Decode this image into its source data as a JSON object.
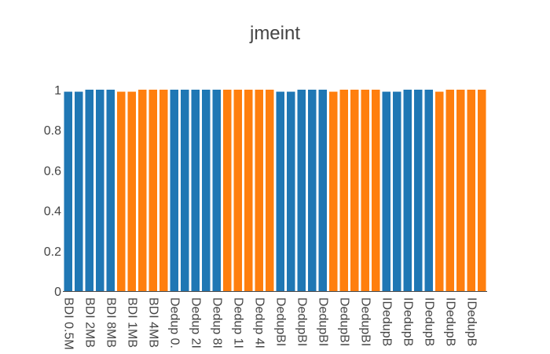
{
  "chart_data": {
    "type": "bar",
    "title": "jmeint",
    "xlabel": "",
    "ylabel": "",
    "ylim": [
      0,
      1
    ],
    "yticks": [
      "0",
      "0.2",
      "0.4",
      "0.6",
      "0.8",
      "1"
    ],
    "grid": false,
    "legend": "none",
    "colors": {
      "blue": "#1f77b4",
      "orange": "#ff7f0e",
      "axis": "#444444"
    },
    "visible_tick_labels": [
      "BDI 0.5M",
      "BDI 2MB",
      "BDI 8MB",
      "BDI 1MB",
      "BDI 4MB",
      "Dedup 0.",
      "Dedup 2I",
      "Dedup 8I",
      "Dedup 1I",
      "Dedup 4I",
      "DedupBI",
      "DedupBI",
      "DedupBI",
      "DedupBI",
      "DedupBI",
      "IDedupB",
      "IDedupB",
      "IDedupB",
      "IDedupB",
      "IDedupB"
    ],
    "bars": [
      {
        "value": 0.99,
        "color": "blue",
        "label": "BDI 0.5M"
      },
      {
        "value": 0.99,
        "color": "blue",
        "label": ""
      },
      {
        "value": 1.0,
        "color": "blue",
        "label": "BDI 2MB"
      },
      {
        "value": 1.0,
        "color": "blue",
        "label": ""
      },
      {
        "value": 1.0,
        "color": "blue",
        "label": "BDI 8MB"
      },
      {
        "value": 0.99,
        "color": "orange",
        "label": ""
      },
      {
        "value": 0.99,
        "color": "orange",
        "label": "BDI 1MB"
      },
      {
        "value": 1.0,
        "color": "orange",
        "label": ""
      },
      {
        "value": 1.0,
        "color": "orange",
        "label": "BDI 4MB"
      },
      {
        "value": 1.0,
        "color": "orange",
        "label": ""
      },
      {
        "value": 1.0,
        "color": "blue",
        "label": "Dedup 0."
      },
      {
        "value": 1.0,
        "color": "blue",
        "label": ""
      },
      {
        "value": 1.0,
        "color": "blue",
        "label": "Dedup 2I"
      },
      {
        "value": 1.0,
        "color": "blue",
        "label": ""
      },
      {
        "value": 1.0,
        "color": "blue",
        "label": "Dedup 8I"
      },
      {
        "value": 1.0,
        "color": "orange",
        "label": ""
      },
      {
        "value": 1.0,
        "color": "orange",
        "label": "Dedup 1I"
      },
      {
        "value": 1.0,
        "color": "orange",
        "label": ""
      },
      {
        "value": 1.0,
        "color": "orange",
        "label": "Dedup 4I"
      },
      {
        "value": 1.0,
        "color": "orange",
        "label": ""
      },
      {
        "value": 0.99,
        "color": "blue",
        "label": "DedupBI"
      },
      {
        "value": 0.99,
        "color": "blue",
        "label": ""
      },
      {
        "value": 1.0,
        "color": "blue",
        "label": "DedupBI"
      },
      {
        "value": 1.0,
        "color": "blue",
        "label": ""
      },
      {
        "value": 1.0,
        "color": "blue",
        "label": "DedupBI"
      },
      {
        "value": 0.99,
        "color": "orange",
        "label": ""
      },
      {
        "value": 1.0,
        "color": "orange",
        "label": "DedupBI"
      },
      {
        "value": 1.0,
        "color": "orange",
        "label": ""
      },
      {
        "value": 1.0,
        "color": "orange",
        "label": "DedupBI"
      },
      {
        "value": 1.0,
        "color": "orange",
        "label": ""
      },
      {
        "value": 0.99,
        "color": "blue",
        "label": "IDedupB"
      },
      {
        "value": 0.99,
        "color": "blue",
        "label": ""
      },
      {
        "value": 1.0,
        "color": "blue",
        "label": "IDedupB"
      },
      {
        "value": 1.0,
        "color": "blue",
        "label": ""
      },
      {
        "value": 1.0,
        "color": "blue",
        "label": "IDedupB"
      },
      {
        "value": 0.99,
        "color": "orange",
        "label": ""
      },
      {
        "value": 1.0,
        "color": "orange",
        "label": "IDedupB"
      },
      {
        "value": 1.0,
        "color": "orange",
        "label": ""
      },
      {
        "value": 1.0,
        "color": "orange",
        "label": "IDedupB"
      },
      {
        "value": 1.0,
        "color": "orange",
        "label": ""
      }
    ]
  }
}
